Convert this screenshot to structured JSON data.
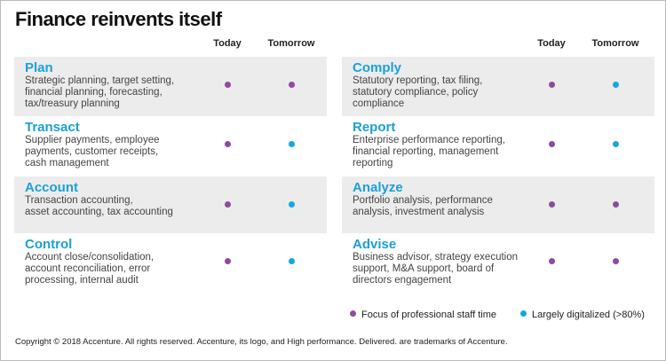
{
  "header": {
    "title": "Finance reinvents itself"
  },
  "columns": {
    "today": "Today",
    "tomorrow": "Tomorrow"
  },
  "panels": [
    {
      "rows": [
        {
          "title": "Plan",
          "description": [
            "Strategic planning, target setting,",
            "financial planning, forecasting,",
            "tax/treasury planning"
          ],
          "today": "#8e4a9c",
          "tomorrow": "#8e4a9c"
        },
        {
          "title": "Transact",
          "description": [
            "Supplier payments, employee",
            "payments, customer receipts,",
            "cash management"
          ],
          "today": "#8e4a9c",
          "tomorrow": "#12a8e0"
        },
        {
          "title": "Account",
          "description": [
            "Transaction accounting,",
            "asset accounting, tax accounting"
          ],
          "today": "#8e4a9c",
          "tomorrow": "#12a8e0"
        },
        {
          "title": "Control",
          "description": [
            "Account close/consolidation,",
            "account reconciliation, error",
            "processing, internal audit"
          ],
          "today": "#8e4a9c",
          "tomorrow": "#12a8e0"
        }
      ]
    },
    {
      "rows": [
        {
          "title": "Comply",
          "description": [
            "Statutory reporting, tax filing,",
            "statutory compliance, policy",
            "compliance"
          ],
          "today": "#8e4a9c",
          "tomorrow": "#12a8e0"
        },
        {
          "title": "Report",
          "description": [
            "Enterprise performance reporting,",
            "financial reporting, management",
            "reporting"
          ],
          "today": "#8e4a9c",
          "tomorrow": "#12a8e0"
        },
        {
          "title": "Analyze",
          "description": [
            "Portfolio analysis, performance",
            "analysis,  investment analysis"
          ],
          "today": "#8e4a9c",
          "tomorrow": "#8e4a9c"
        },
        {
          "title": "Advise",
          "description": [
            "Business advisor, strategy execution",
            "support, M&A support, board of",
            "directors engagement"
          ],
          "today": "#8e4a9c",
          "tomorrow": "#8e4a9c"
        }
      ]
    }
  ],
  "legend": [
    {
      "label": "Focus of professional staff time",
      "color": "#8e4a9c"
    },
    {
      "label": "Largely digitalized (>80%)",
      "color": "#12a8e0"
    }
  ],
  "footer": "Copyright © 2018 Accenture. All rights reserved. Accenture, its logo, and High performance. Delivered. are trademarks of Accenture."
}
